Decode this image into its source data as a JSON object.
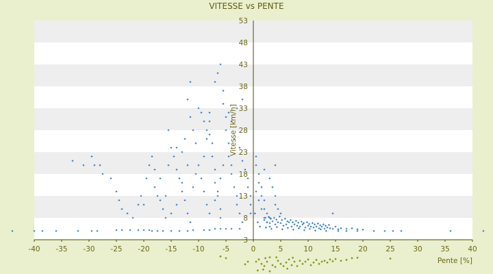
{
  "chart_data": {
    "type": "scatter",
    "title": "VITESSE vs PENTE",
    "xlabel": "Pente [%]",
    "ylabel": "Vitesse [km/h]",
    "xlim": [
      -40,
      40
    ],
    "ylim": [
      3,
      53
    ],
    "xticks": [
      -40,
      -35,
      -30,
      -25,
      -20,
      -15,
      -10,
      -5,
      0,
      5,
      10,
      15,
      20,
      25,
      30,
      35,
      40
    ],
    "yticks": [
      3,
      8,
      13,
      18,
      23,
      28,
      33,
      38,
      43,
      48,
      53
    ],
    "grid": "alternating horizontal bands",
    "legend": "none",
    "colors": {
      "background": "#eaf0cd",
      "plot_band_light": "#ffffff",
      "plot_band_dark": "#eeeeee",
      "axis": "#4a4a10",
      "text": "#6b6618",
      "series_points": "#2e78c8",
      "secondary_points": "#8a9620"
    },
    "series": [
      {
        "values": [
          [
            -44,
            5
          ],
          [
            -40,
            5
          ],
          [
            -38.5,
            5
          ],
          [
            -36,
            5
          ],
          [
            -32,
            5
          ],
          [
            -29.5,
            5
          ],
          [
            -28.5,
            5
          ],
          [
            -25,
            5.2
          ],
          [
            -24,
            5.2
          ],
          [
            -22.5,
            5.2
          ],
          [
            -21,
            5.2
          ],
          [
            -20,
            5.2
          ],
          [
            -19,
            5.2
          ],
          [
            -18.5,
            5
          ],
          [
            -17.5,
            5
          ],
          [
            -16.5,
            5
          ],
          [
            -15,
            5
          ],
          [
            -13.5,
            5
          ],
          [
            -12,
            5
          ],
          [
            -11,
            5.2
          ],
          [
            -9,
            5.2
          ],
          [
            -8,
            5.2
          ],
          [
            -7,
            5.5
          ],
          [
            -6,
            5.5
          ],
          [
            -5,
            5.5
          ],
          [
            -4,
            5.5
          ],
          [
            -2.5,
            5.5
          ],
          [
            -33,
            21
          ],
          [
            -31,
            20
          ],
          [
            -29.5,
            22
          ],
          [
            -29,
            20
          ],
          [
            -28,
            20
          ],
          [
            -27.5,
            18
          ],
          [
            -26,
            17
          ],
          [
            -25,
            14
          ],
          [
            -24.5,
            12
          ],
          [
            -24,
            10
          ],
          [
            -23,
            9
          ],
          [
            -22,
            8
          ],
          [
            -21,
            11
          ],
          [
            -20.5,
            13
          ],
          [
            -20,
            11
          ],
          [
            -19.5,
            17
          ],
          [
            -19,
            20
          ],
          [
            -18.5,
            22
          ],
          [
            -18,
            15
          ],
          [
            -17.5,
            13
          ],
          [
            -17,
            12
          ],
          [
            -16.5,
            10
          ],
          [
            -16,
            8
          ],
          [
            -15.5,
            20
          ],
          [
            -15,
            24
          ],
          [
            -14.5,
            22
          ],
          [
            -14,
            19
          ],
          [
            -13.5,
            17
          ],
          [
            -13,
            14
          ],
          [
            -12.5,
            12
          ],
          [
            -12,
            9
          ],
          [
            -11.5,
            7
          ],
          [
            -15.5,
            28
          ],
          [
            -14,
            24
          ],
          [
            -13,
            23
          ],
          [
            -12.5,
            26
          ],
          [
            -12,
            35
          ],
          [
            -11.5,
            31
          ],
          [
            -11,
            28
          ],
          [
            -10.5,
            25
          ],
          [
            -10,
            33
          ],
          [
            -9.5,
            32
          ],
          [
            -9,
            30
          ],
          [
            -8.5,
            28
          ],
          [
            -8.5,
            26
          ],
          [
            -8,
            30
          ],
          [
            -8,
            27
          ],
          [
            -7.5,
            25
          ],
          [
            -7.5,
            22
          ],
          [
            -7,
            19
          ],
          [
            -7,
            16
          ],
          [
            -6.5,
            13
          ],
          [
            -6,
            10
          ],
          [
            -6,
            8
          ],
          [
            -11.5,
            39
          ],
          [
            -8,
            32
          ],
          [
            -7,
            39
          ],
          [
            -6.5,
            41
          ],
          [
            -6,
            43
          ],
          [
            -5.5,
            37
          ],
          [
            -5.5,
            34
          ],
          [
            -5,
            31
          ],
          [
            -5,
            28
          ],
          [
            -4.5,
            25
          ],
          [
            -4.5,
            22
          ],
          [
            -4,
            20
          ],
          [
            -4,
            18
          ],
          [
            -3.5,
            15
          ],
          [
            -3,
            13
          ],
          [
            -3,
            11
          ],
          [
            -2.5,
            9
          ],
          [
            -2,
            7
          ],
          [
            -2,
            35
          ],
          [
            -3,
            33
          ],
          [
            -4,
            30
          ],
          [
            -4.5,
            32
          ],
          [
            -3.5,
            26
          ],
          [
            -2.5,
            24
          ],
          [
            -2,
            21
          ],
          [
            -1.5,
            19
          ],
          [
            -1,
            17
          ],
          [
            -1,
            15
          ],
          [
            -0.5,
            13
          ],
          [
            -0.5,
            11
          ],
          [
            -0.5,
            9
          ],
          [
            -10,
            20
          ],
          [
            -9.5,
            17
          ],
          [
            -9,
            14
          ],
          [
            -8.5,
            11
          ],
          [
            -8,
            9
          ],
          [
            -7,
            12
          ],
          [
            -6.5,
            14
          ],
          [
            -6,
            17
          ],
          [
            -5.5,
            20
          ],
          [
            -10.5,
            18
          ],
          [
            -11,
            15
          ],
          [
            -9,
            22
          ],
          [
            -12,
            20
          ],
          [
            -13,
            16
          ],
          [
            -14,
            11
          ],
          [
            -15,
            9
          ],
          [
            -16,
            13
          ],
          [
            -17,
            17
          ],
          [
            -18,
            19
          ],
          [
            0.5,
            22
          ],
          [
            0.5,
            20
          ],
          [
            1,
            18
          ],
          [
            1,
            16
          ],
          [
            1.5,
            15
          ],
          [
            1.5,
            13
          ],
          [
            2,
            12
          ],
          [
            2,
            10
          ],
          [
            2.5,
            9
          ],
          [
            3,
            8
          ],
          [
            3.5,
            15
          ],
          [
            4,
            13
          ],
          [
            4,
            11
          ],
          [
            4.5,
            10
          ],
          [
            5,
            9
          ],
          [
            2,
            19
          ],
          [
            3,
            17
          ],
          [
            4,
            20
          ],
          [
            0.5,
            14
          ],
          [
            1,
            12
          ],
          [
            1.5,
            10
          ],
          [
            2,
            8
          ],
          [
            2.5,
            7
          ],
          [
            3,
            6
          ],
          [
            0.3,
            9
          ],
          [
            0.8,
            7
          ],
          [
            1.2,
            6
          ],
          [
            2,
            7.5
          ],
          [
            2.5,
            7
          ],
          [
            3,
            6.8
          ],
          [
            3.5,
            7.2
          ],
          [
            4,
            6.5
          ],
          [
            4.5,
            7
          ],
          [
            5,
            6.8
          ],
          [
            5.5,
            6.2
          ],
          [
            6,
            6.5
          ],
          [
            6.5,
            7
          ],
          [
            7,
            6
          ],
          [
            7.5,
            6.5
          ],
          [
            8,
            6.2
          ],
          [
            8.5,
            6
          ],
          [
            9,
            6.5
          ],
          [
            9.5,
            5.8
          ],
          [
            10,
            6.2
          ],
          [
            10.5,
            6
          ],
          [
            11,
            5.8
          ],
          [
            11.5,
            6
          ],
          [
            12,
            5.6
          ],
          [
            12.5,
            6
          ],
          [
            13,
            5.5
          ],
          [
            13.5,
            5.8
          ],
          [
            14,
            5.6
          ],
          [
            14.5,
            5.5
          ],
          [
            15,
            6
          ],
          [
            15.5,
            5.4
          ],
          [
            16,
            5.6
          ],
          [
            17,
            5.5
          ],
          [
            18,
            5.6
          ],
          [
            19,
            5.4
          ],
          [
            20,
            5.3
          ],
          [
            2.2,
            8
          ],
          [
            2.8,
            8.2
          ],
          [
            3.2,
            7.8
          ],
          [
            3.8,
            8
          ],
          [
            4.2,
            7.6
          ],
          [
            4.8,
            8.3
          ],
          [
            5.2,
            7.5
          ],
          [
            5.8,
            7.8
          ],
          [
            6.2,
            7.2
          ],
          [
            6.8,
            7.5
          ],
          [
            7.2,
            7
          ],
          [
            7.8,
            7.3
          ],
          [
            8.2,
            6.9
          ],
          [
            8.8,
            7.1
          ],
          [
            9.2,
            6.8
          ],
          [
            9.8,
            7
          ],
          [
            10.2,
            6.6
          ],
          [
            10.8,
            6.8
          ],
          [
            11.2,
            6.5
          ],
          [
            11.8,
            6.7
          ],
          [
            12.2,
            6.3
          ],
          [
            12.8,
            6.5
          ],
          [
            13.2,
            6.2
          ],
          [
            13.8,
            6.4
          ],
          [
            14.5,
            9
          ],
          [
            2.3,
            5.8
          ],
          [
            3.3,
            5.5
          ],
          [
            4.3,
            5.9
          ],
          [
            5.3,
            5.4
          ],
          [
            6.3,
            5.7
          ],
          [
            7.3,
            5.3
          ],
          [
            8.3,
            5.6
          ],
          [
            9.3,
            5.2
          ],
          [
            10.3,
            5.5
          ],
          [
            11.3,
            5.1
          ],
          [
            12.3,
            5.4
          ],
          [
            13.3,
            5.0
          ],
          [
            15.5,
            5.0
          ],
          [
            17,
            5.0
          ],
          [
            19,
            5.0
          ],
          [
            22,
            5.0
          ],
          [
            24,
            5.0
          ],
          [
            25.5,
            5.0
          ],
          [
            27,
            5.0
          ],
          [
            36,
            5.0
          ],
          [
            42,
            5.0
          ],
          [
            44,
            6.3
          ]
        ]
      }
    ],
    "secondary_points": [
      [
        0.5,
        -2
      ],
      [
        1,
        -1.5
      ],
      [
        1.5,
        -2.5
      ],
      [
        2,
        -3
      ],
      [
        2.5,
        -2
      ],
      [
        3,
        -1
      ],
      [
        3.5,
        -2.8
      ],
      [
        4,
        -3.2
      ],
      [
        4.5,
        -1.8
      ],
      [
        5,
        -2.5
      ],
      [
        5.5,
        -3
      ],
      [
        6,
        -2.2
      ],
      [
        6.5,
        -1.5
      ],
      [
        7,
        -2.8
      ],
      [
        7.5,
        -2
      ],
      [
        8,
        -3
      ],
      [
        8.5,
        -1.8
      ],
      [
        9,
        -2.5
      ],
      [
        9.5,
        -2
      ],
      [
        10,
        -1.5
      ],
      [
        10.5,
        -2.8
      ],
      [
        11,
        -2.2
      ],
      [
        11.5,
        -1.6
      ],
      [
        12,
        -2.5
      ],
      [
        12.5,
        -2
      ],
      [
        13,
        -1.8
      ],
      [
        13.5,
        -2.2
      ],
      [
        14,
        -1.5
      ],
      [
        14.5,
        -1.9
      ],
      [
        15,
        -1.4
      ],
      [
        16,
        -1.8
      ],
      [
        17,
        -1.6
      ],
      [
        18,
        -1.2
      ],
      [
        19,
        -1.1
      ],
      [
        -1,
        -2
      ],
      [
        -1.5,
        -2.6
      ],
      [
        -5,
        -1.2
      ],
      [
        -6,
        -0.8
      ],
      [
        0.8,
        -4
      ],
      [
        1.8,
        -3.8
      ],
      [
        3,
        -4.2
      ],
      [
        2.2,
        -1.2
      ],
      [
        4.2,
        -1
      ],
      [
        6.2,
        -3.6
      ],
      [
        7.2,
        -1.1
      ],
      [
        25,
        -1.3
      ]
    ]
  }
}
